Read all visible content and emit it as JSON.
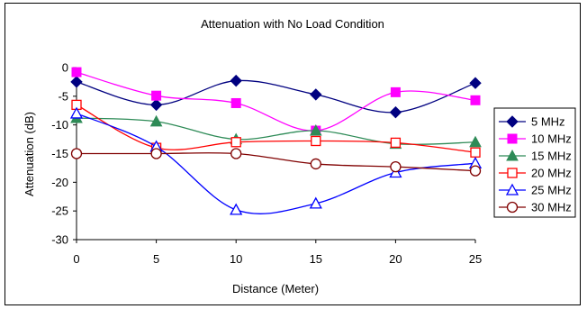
{
  "chart_data": {
    "type": "line",
    "title": "Attenuation with No Load Condition",
    "xlabel": "Distance (Meter)",
    "ylabel": "Attenuation (dB)",
    "x": [
      0,
      5,
      10,
      15,
      20,
      25
    ],
    "xlim": [
      0,
      25
    ],
    "ylim": [
      -30,
      0
    ],
    "x_ticks": [
      "0",
      "5",
      "10",
      "15",
      "20",
      "25"
    ],
    "y_ticks": [
      "0",
      "-5",
      "-10",
      "-15",
      "-20",
      "-25",
      "-30"
    ],
    "grid": false,
    "smooth": true,
    "legend_position": "right",
    "series": [
      {
        "name": "5 MHz",
        "values": [
          -2.5,
          -6.5,
          -2.3,
          -4.7,
          -7.8,
          -2.7
        ],
        "color": "#000080",
        "marker": "diamond"
      },
      {
        "name": "10 MHz",
        "values": [
          -0.8,
          -4.9,
          -6.2,
          -11.0,
          -4.3,
          -5.7
        ],
        "color": "#FF00FF",
        "marker": "square"
      },
      {
        "name": "15 MHz",
        "values": [
          -8.8,
          -9.4,
          -12.5,
          -11.0,
          -13.3,
          -13.0
        ],
        "color": "#2E8B57",
        "marker": "triangle"
      },
      {
        "name": "20 MHz",
        "values": [
          -6.5,
          -14.0,
          -13.0,
          -12.8,
          -13.1,
          -14.8
        ],
        "color": "#FF0000",
        "marker": "square-open"
      },
      {
        "name": "25 MHz",
        "values": [
          -8.0,
          -13.8,
          -24.8,
          -23.7,
          -18.3,
          -16.7
        ],
        "color": "#0000FF",
        "marker": "triangle-open"
      },
      {
        "name": "30 MHz",
        "values": [
          -15.0,
          -15.0,
          -15.0,
          -16.8,
          -17.3,
          -18.0
        ],
        "color": "#800000",
        "marker": "circle-open"
      }
    ]
  }
}
